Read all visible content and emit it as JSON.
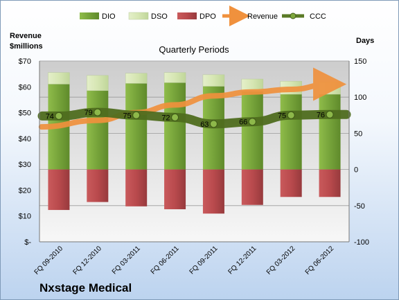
{
  "company": "Nxstage Medical",
  "colors": {
    "dio": "#76a33a",
    "dso": "#d6e6b3",
    "dpo": "#b94a4d",
    "revenue": "#f0913d",
    "ccc": "#5a7a26"
  },
  "chart_data": {
    "type": "bar",
    "title": "Quarterly Periods",
    "left_axis_label": "Revenue $millions",
    "right_axis_label": "Days",
    "categories": [
      "FQ 09-2010",
      "FQ 12-2010",
      "FQ 03-2011",
      "FQ 06-2011",
      "FQ 09-2011",
      "FQ 12-2011",
      "FQ 03-2012",
      "FQ 06-2012"
    ],
    "left_ylim": [
      0,
      70
    ],
    "left_ticks": [
      "$-",
      "$10",
      "$20",
      "$30",
      "$40",
      "$50",
      "$60",
      "$70"
    ],
    "left_tick_values": [
      0,
      10,
      20,
      30,
      40,
      50,
      60,
      70
    ],
    "right_ylim": [
      -100,
      150
    ],
    "right_ticks": [
      "-100",
      "-50",
      "0",
      "50",
      "100",
      "150"
    ],
    "right_tick_values": [
      -100,
      -50,
      0,
      50,
      100,
      150
    ],
    "grid": true,
    "legend_position": "top",
    "series": [
      {
        "name": "DIO",
        "type": "stacked-bar",
        "axis": "right",
        "values": [
          118,
          109,
          119,
          120,
          115,
          108,
          104,
          104
        ]
      },
      {
        "name": "DSO",
        "type": "stacked-bar",
        "axis": "right",
        "values": [
          16,
          21,
          14,
          14,
          16,
          17,
          18,
          17
        ]
      },
      {
        "name": "DPO",
        "type": "negative-bar",
        "axis": "right",
        "values": [
          -56,
          -45,
          -51,
          -55,
          -61,
          -49,
          -38,
          -38
        ]
      },
      {
        "name": "Revenue",
        "type": "line",
        "axis": "left",
        "values": [
          44.5,
          47,
          50,
          53,
          56.5,
          58,
          59,
          61
        ]
      },
      {
        "name": "CCC",
        "type": "line",
        "axis": "right",
        "values": [
          74,
          79,
          75,
          72,
          63,
          66,
          75,
          76
        ]
      }
    ],
    "data_labels": [
      "74",
      "79",
      "75",
      "72",
      "63",
      "66",
      "75",
      "76"
    ]
  }
}
